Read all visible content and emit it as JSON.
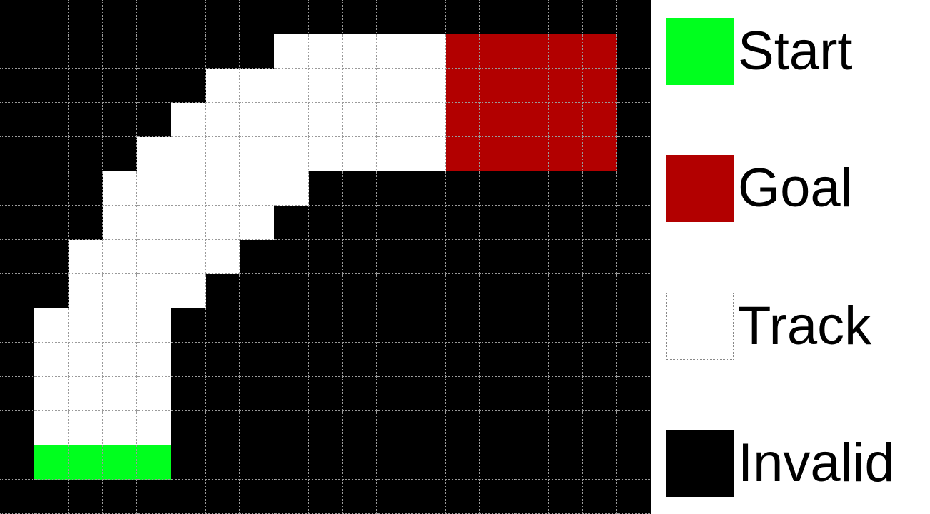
{
  "colors": {
    "S": "#00ff1e",
    "G": "#b20000",
    "W": "#ffffff",
    "B": "#000000"
  },
  "track_map": [
    "BBBBBBBBBBBBBBBBBBB",
    "BBBBBBBBWWWWWGGGGGB",
    "BBBBBBWWWWWWWGGGGGB",
    "BBBBBWWWWWWWWGGGGGB",
    "BBBBWWWWWWWWWGGGGGB",
    "BBBWWWWWWBBBBBBBBBB",
    "BBBWWWWWBBBBBBBBBBB",
    "BBWWWWWBBBBBBBBBBBB",
    "BBWWWWBBBBBBBBBBBBB",
    "BWWWWBBBBBBBBBBBBBB",
    "BWWWWBBBBBBBBBBBBBB",
    "BWWWWBBBBBBBBBBBBBB",
    "BWWWWBBBBBBBBBBBBBB",
    "BSSSSBBBBBBBBBBBBBB",
    "BBBBBBBBBBBBBBBBBBB"
  ],
  "legend": [
    {
      "key": "S",
      "label": "Start"
    },
    {
      "key": "G",
      "label": "Goal"
    },
    {
      "key": "W",
      "label": "Track"
    },
    {
      "key": "B",
      "label": "Invalid"
    }
  ]
}
